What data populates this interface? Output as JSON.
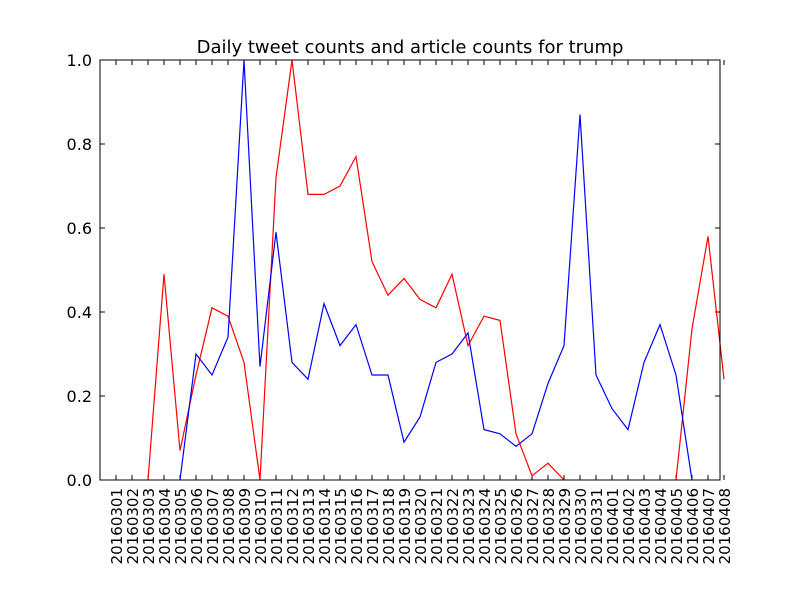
{
  "chart_data": {
    "type": "line",
    "title": "Daily tweet counts and article counts for trump",
    "xlabel": "",
    "ylabel": "",
    "ylim": [
      0,
      1.0
    ],
    "y_ticks": [
      "0.0",
      "0.2",
      "0.4",
      "0.6",
      "0.8",
      "1.0"
    ],
    "grid": false,
    "categories": [
      "20160301",
      "20160302",
      "20160303",
      "20160304",
      "20160305",
      "20160306",
      "20160307",
      "20160308",
      "20160309",
      "20160310",
      "20160311",
      "20160312",
      "20160313",
      "20160314",
      "20160315",
      "20160316",
      "20160317",
      "20160318",
      "20160319",
      "20160320",
      "20160321",
      "20160322",
      "20160323",
      "20160324",
      "20160325",
      "20160326",
      "20160327",
      "20160328",
      "20160329",
      "20160330",
      "20160331",
      "20160401",
      "20160402",
      "20160403",
      "20160404",
      "20160405",
      "20160406",
      "20160407",
      "20160408"
    ],
    "series": [
      {
        "color": "#ff0000",
        "values": [
          null,
          null,
          0.0,
          0.49,
          0.07,
          0.25,
          0.41,
          0.39,
          0.28,
          0.0,
          0.72,
          1.0,
          0.68,
          0.68,
          0.7,
          0.77,
          0.52,
          0.44,
          0.48,
          0.43,
          0.41,
          0.49,
          0.32,
          0.39,
          0.38,
          0.11,
          0.01,
          0.04,
          0.0,
          null,
          null,
          null,
          null,
          null,
          null,
          0.0,
          0.36,
          0.58,
          0.24
        ]
      },
      {
        "color": "#0000ff",
        "values": [
          null,
          null,
          null,
          null,
          0.0,
          0.3,
          0.25,
          0.34,
          1.0,
          0.27,
          0.59,
          0.28,
          0.24,
          0.42,
          0.32,
          0.37,
          0.25,
          0.25,
          0.09,
          0.15,
          0.28,
          0.3,
          0.35,
          0.12,
          0.11,
          0.08,
          0.11,
          0.23,
          0.32,
          0.87,
          0.25,
          0.17,
          0.12,
          0.28,
          0.37,
          0.25,
          0.0,
          null,
          null
        ]
      }
    ]
  }
}
